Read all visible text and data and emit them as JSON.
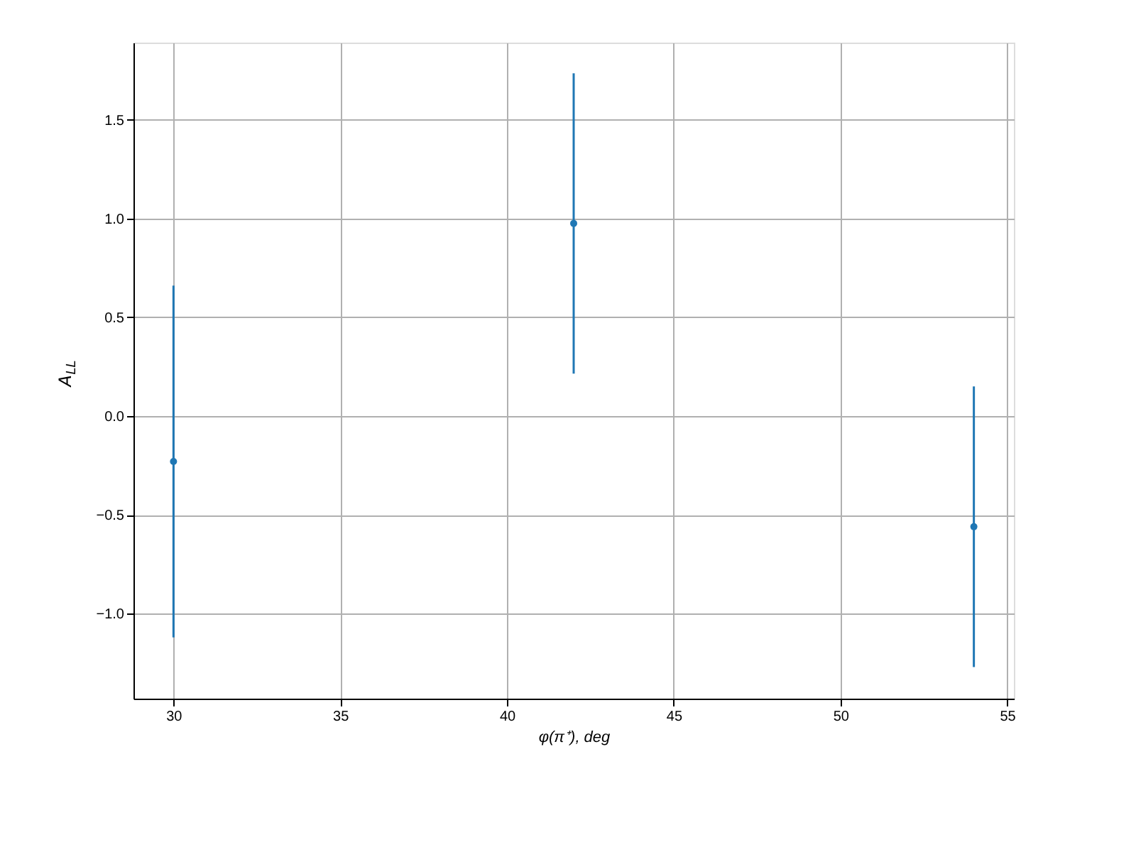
{
  "chart_data": {
    "type": "scatter",
    "xlabel": "φ(π⁺), deg",
    "ylabel": "A$_{LL}$",
    "x": [
      30,
      42,
      54
    ],
    "series": [
      {
        "color": "#1f77b4",
        "values": [
          -0.23,
          0.975,
          -0.56
        ],
        "errors": [
          0.89,
          0.76,
          0.71
        ]
      }
    ],
    "xlim": [
      28.8,
      55.2
    ],
    "ylim": [
      -1.43,
      1.89
    ],
    "xticks": [
      30,
      35,
      40,
      45,
      50,
      55
    ],
    "yticks": [
      {
        "value": -1.0,
        "label": "−1.0"
      },
      {
        "value": -0.5,
        "label": "−0.5"
      },
      {
        "value": 0,
        "label": "0.0"
      },
      {
        "value": 0.5,
        "label": "0.5"
      },
      {
        "value": 1.0,
        "label": "1.0"
      },
      {
        "value": 1.5,
        "label": "1.5"
      }
    ],
    "grid": true,
    "marker": "circle"
  }
}
